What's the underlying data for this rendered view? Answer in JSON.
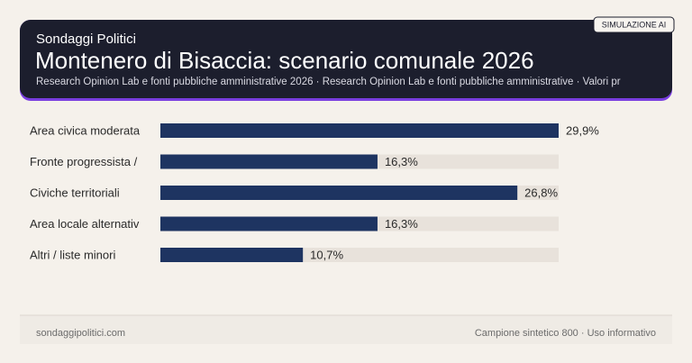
{
  "header": {
    "kicker": "Sondaggi Politici",
    "badge": "SIMULAZIONE AI"
  },
  "chart_data": {
    "type": "bar",
    "orientation": "horizontal",
    "title": "Montenero di Bisaccia: scenario comunale 2026",
    "subtitle": "Research Opinion Lab e fonti pubbliche amministrative 2026 · Research Opinion Lab e fonti pubbliche amministrative · Valori pr",
    "categories": [
      "Area civica moderata",
      "Fronte progressista /",
      "Civiche territoriali",
      "Area locale alternativ",
      "Altri / liste minori"
    ],
    "values": [
      29.9,
      16.3,
      26.8,
      16.3,
      10.7
    ],
    "value_labels": [
      "29,9%",
      "16,3%",
      "26,8%",
      "16,3%",
      "10,7%"
    ],
    "color": "#1e3461",
    "xlim": [
      0,
      29.9
    ]
  },
  "footer": {
    "left": "sondaggipolitici.com",
    "right": "Campione sintetico 800 · Uso informativo"
  }
}
